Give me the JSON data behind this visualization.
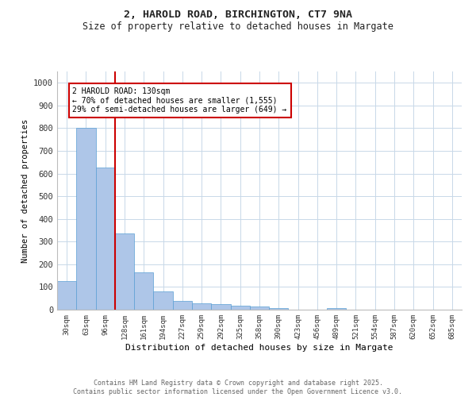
{
  "title1": "2, HAROLD ROAD, BIRCHINGTON, CT7 9NA",
  "title2": "Size of property relative to detached houses in Margate",
  "xlabel": "Distribution of detached houses by size in Margate",
  "ylabel": "Number of detached properties",
  "bar_labels": [
    "30sqm",
    "63sqm",
    "96sqm",
    "128sqm",
    "161sqm",
    "194sqm",
    "227sqm",
    "259sqm",
    "292sqm",
    "325sqm",
    "358sqm",
    "390sqm",
    "423sqm",
    "456sqm",
    "489sqm",
    "521sqm",
    "554sqm",
    "587sqm",
    "620sqm",
    "652sqm",
    "685sqm"
  ],
  "bar_values": [
    125,
    800,
    625,
    335,
    165,
    80,
    40,
    27,
    25,
    18,
    13,
    6,
    1,
    0,
    8,
    0,
    0,
    0,
    0,
    0,
    0
  ],
  "bar_color": "#aec6e8",
  "bar_edge_color": "#5a9fd4",
  "property_line_color": "#cc0000",
  "property_line_x": 2.5,
  "annotation_text": "2 HAROLD ROAD: 130sqm\n← 70% of detached houses are smaller (1,555)\n29% of semi-detached houses are larger (649) →",
  "annotation_box_color": "#ffffff",
  "annotation_box_edge": "#cc0000",
  "ylim": [
    0,
    1050
  ],
  "yticks": [
    0,
    100,
    200,
    300,
    400,
    500,
    600,
    700,
    800,
    900,
    1000
  ],
  "footer1": "Contains HM Land Registry data © Crown copyright and database right 2025.",
  "footer2": "Contains public sector information licensed under the Open Government Licence v3.0.",
  "bg_color": "#ffffff",
  "grid_color": "#c8d8e8"
}
